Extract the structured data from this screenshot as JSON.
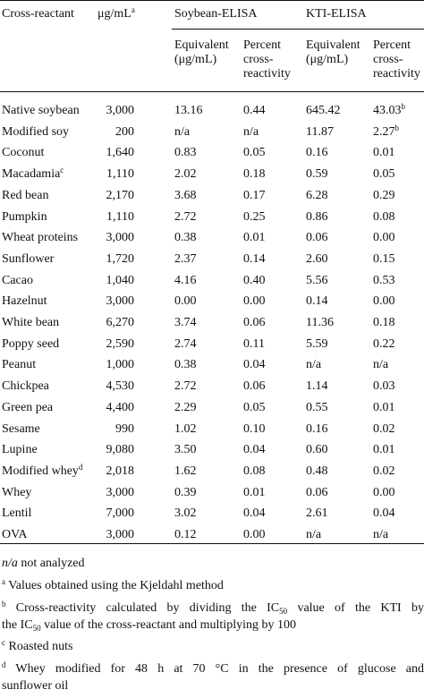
{
  "headers": {
    "cross_reactant": "Cross-reactant",
    "ug_ml": "μg/mL",
    "ug_ml_sup": "a",
    "soybean_elisa": "Soybean-ELISA",
    "kti_elisa": "KTI-ELISA",
    "equivalent_line1": "Equivalent",
    "equivalent_line2": "(μg/mL)",
    "percent_line1": "Percent",
    "percent_line2": "cross-",
    "percent_line3": "reactivity"
  },
  "rows": [
    {
      "name": "Native soybean",
      "name_sup": "",
      "conc": "3,000",
      "soy_eq": "13.16",
      "soy_pct": "0.44",
      "kti_eq": "645.42",
      "kti_pct": "43.03",
      "kti_pct_sup": "b"
    },
    {
      "name": "Modified soy",
      "name_sup": "",
      "conc": "200",
      "soy_eq": "n/a",
      "soy_pct": "n/a",
      "kti_eq": "11.87",
      "kti_pct": "2.27",
      "kti_pct_sup": "b"
    },
    {
      "name": "Coconut",
      "name_sup": "",
      "conc": "1,640",
      "soy_eq": "0.83",
      "soy_pct": "0.05",
      "kti_eq": "0.16",
      "kti_pct": "0.01",
      "kti_pct_sup": ""
    },
    {
      "name": "Macadamia",
      "name_sup": "c",
      "conc": "1,110",
      "soy_eq": "2.02",
      "soy_pct": "0.18",
      "kti_eq": "0.59",
      "kti_pct": "0.05",
      "kti_pct_sup": ""
    },
    {
      "name": "Red bean",
      "name_sup": "",
      "conc": "2,170",
      "soy_eq": "3.68",
      "soy_pct": "0.17",
      "kti_eq": "6.28",
      "kti_pct": "0.29",
      "kti_pct_sup": ""
    },
    {
      "name": "Pumpkin",
      "name_sup": "",
      "conc": "1,110",
      "soy_eq": "2.72",
      "soy_pct": "0.25",
      "kti_eq": "0.86",
      "kti_pct": "0.08",
      "kti_pct_sup": ""
    },
    {
      "name": "Wheat proteins",
      "name_sup": "",
      "conc": "3,000",
      "soy_eq": "0.38",
      "soy_pct": "0.01",
      "kti_eq": "0.06",
      "kti_pct": "0.00",
      "kti_pct_sup": ""
    },
    {
      "name": "Sunflower",
      "name_sup": "",
      "conc": "1,720",
      "soy_eq": "2.37",
      "soy_pct": "0.14",
      "kti_eq": "2.60",
      "kti_pct": "0.15",
      "kti_pct_sup": ""
    },
    {
      "name": "Cacao",
      "name_sup": "",
      "conc": "1,040",
      "soy_eq": "4.16",
      "soy_pct": "0.40",
      "kti_eq": "5.56",
      "kti_pct": "0.53",
      "kti_pct_sup": ""
    },
    {
      "name": "Hazelnut",
      "name_sup": "",
      "conc": "3,000",
      "soy_eq": "0.00",
      "soy_pct": "0.00",
      "kti_eq": "0.14",
      "kti_pct": "0.00",
      "kti_pct_sup": ""
    },
    {
      "name": "White bean",
      "name_sup": "",
      "conc": "6,270",
      "soy_eq": "3.74",
      "soy_pct": "0.06",
      "kti_eq": "11.36",
      "kti_pct": "0.18",
      "kti_pct_sup": ""
    },
    {
      "name": "Poppy seed",
      "name_sup": "",
      "conc": "2,590",
      "soy_eq": "2.74",
      "soy_pct": "0.11",
      "kti_eq": "5.59",
      "kti_pct": "0.22",
      "kti_pct_sup": ""
    },
    {
      "name": "Peanut",
      "name_sup": "",
      "conc": "1,000",
      "soy_eq": "0.38",
      "soy_pct": "0.04",
      "kti_eq": "n/a",
      "kti_pct": "n/a",
      "kti_pct_sup": ""
    },
    {
      "name": "Chickpea",
      "name_sup": "",
      "conc": "4,530",
      "soy_eq": "2.72",
      "soy_pct": "0.06",
      "kti_eq": "1.14",
      "kti_pct": "0.03",
      "kti_pct_sup": ""
    },
    {
      "name": "Green pea",
      "name_sup": "",
      "conc": "4,400",
      "soy_eq": "2.29",
      "soy_pct": "0.05",
      "kti_eq": "0.55",
      "kti_pct": "0.01",
      "kti_pct_sup": ""
    },
    {
      "name": "Sesame",
      "name_sup": "",
      "conc": "990",
      "soy_eq": "1.02",
      "soy_pct": "0.10",
      "kti_eq": "0.16",
      "kti_pct": "0.02",
      "kti_pct_sup": ""
    },
    {
      "name": "Lupine",
      "name_sup": "",
      "conc": "9,080",
      "soy_eq": "3.50",
      "soy_pct": "0.04",
      "kti_eq": "0.60",
      "kti_pct": "0.01",
      "kti_pct_sup": ""
    },
    {
      "name": "Modified whey",
      "name_sup": "d",
      "conc": "2,018",
      "soy_eq": "1.62",
      "soy_pct": "0.08",
      "kti_eq": "0.48",
      "kti_pct": "0.02",
      "kti_pct_sup": ""
    },
    {
      "name": "Whey",
      "name_sup": "",
      "conc": "3,000",
      "soy_eq": "0.39",
      "soy_pct": "0.01",
      "kti_eq": "0.06",
      "kti_pct": "0.00",
      "kti_pct_sup": ""
    },
    {
      "name": "Lentil",
      "name_sup": "",
      "conc": "7,000",
      "soy_eq": "3.02",
      "soy_pct": "0.04",
      "kti_eq": "2.61",
      "kti_pct": "0.04",
      "kti_pct_sup": ""
    },
    {
      "name": "OVA",
      "name_sup": "",
      "conc": "3,000",
      "soy_eq": "0.12",
      "soy_pct": "0.00",
      "kti_eq": "n/a",
      "kti_pct": "n/a",
      "kti_pct_sup": ""
    }
  ],
  "footnotes": {
    "na_abbr": "n/a",
    "na_text": " not analyzed",
    "a_sup": "a",
    "a_text": " Values obtained using the Kjeldahl method",
    "b_sup": "b",
    "b_line1_a": " Cross-reactivity calculated by dividing the IC",
    "b_sub1": "50",
    "b_line1_b": " value of the KTI by",
    "b_line2_a": "the IC",
    "b_sub2": "50",
    "b_line2_b": " value of the cross-reactant and multiplying by 100",
    "c_sup": "c",
    "c_text": " Roasted nuts",
    "d_sup": "d",
    "d_line1": " Whey modified for 48 h at 70 °C in the presence of glucose and",
    "d_line2": "sunflower oil"
  }
}
